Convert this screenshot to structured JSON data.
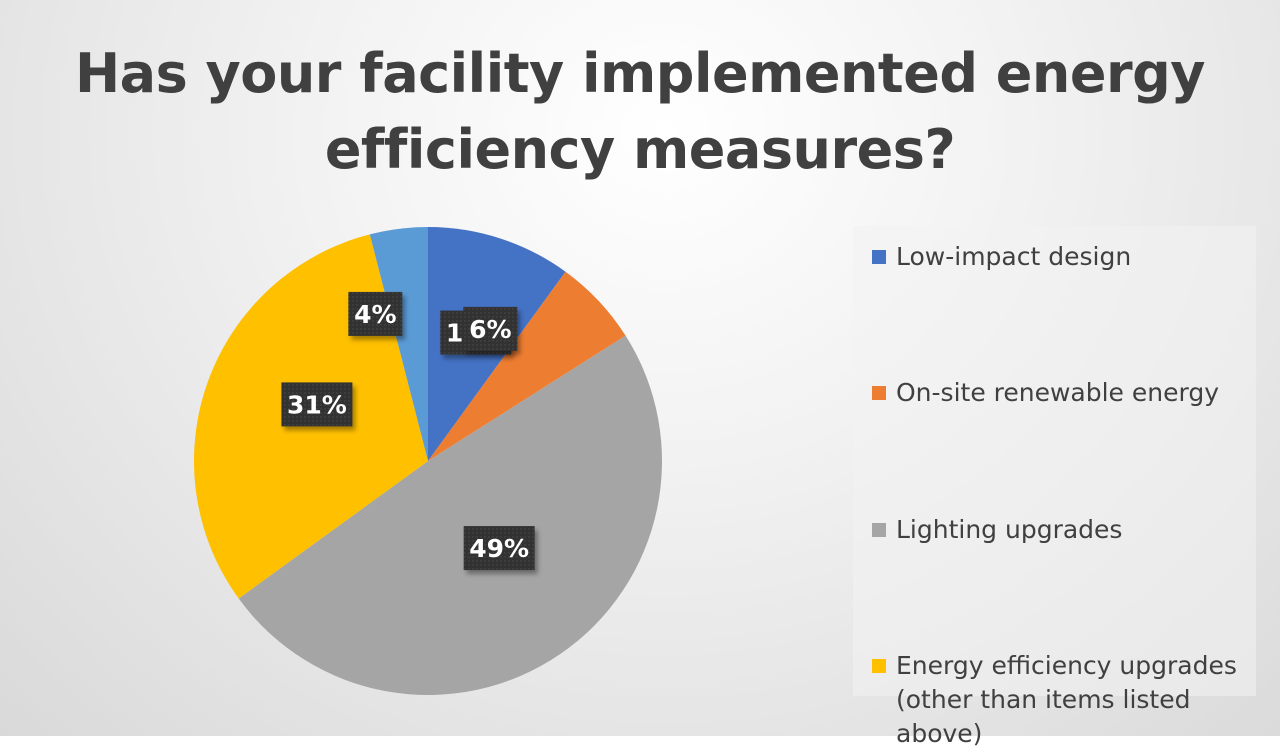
{
  "chart_data": {
    "type": "pie",
    "title": "Has your facility implemented energy efficiency measures?",
    "slices": [
      {
        "name": "Low-impact design",
        "value": 10,
        "label": "10%",
        "color": "#4472c4"
      },
      {
        "name": "On-site renewable energy",
        "value": 6,
        "label": "6%",
        "color": "#ed7d31"
      },
      {
        "name": "Lighting upgrades",
        "value": 49,
        "label": "49%",
        "color": "#a5a5a5"
      },
      {
        "name": "Energy efficiency upgrades (other than items listed above)",
        "value": 31,
        "label": "31%",
        "color": "#ffc000"
      },
      {
        "name": "",
        "value": 4,
        "label": "4%",
        "color": "#5b9bd5"
      }
    ],
    "legend_position": "right"
  },
  "legend_items": [
    {
      "label": "Low-impact design",
      "color": "#4472c4"
    },
    {
      "label": "On-site renewable energy",
      "color": "#ed7d31"
    },
    {
      "label": "Lighting upgrades",
      "color": "#a5a5a5"
    },
    {
      "label": "Energy efficiency upgrades (other than items listed above)",
      "color": "#ffc000"
    }
  ]
}
